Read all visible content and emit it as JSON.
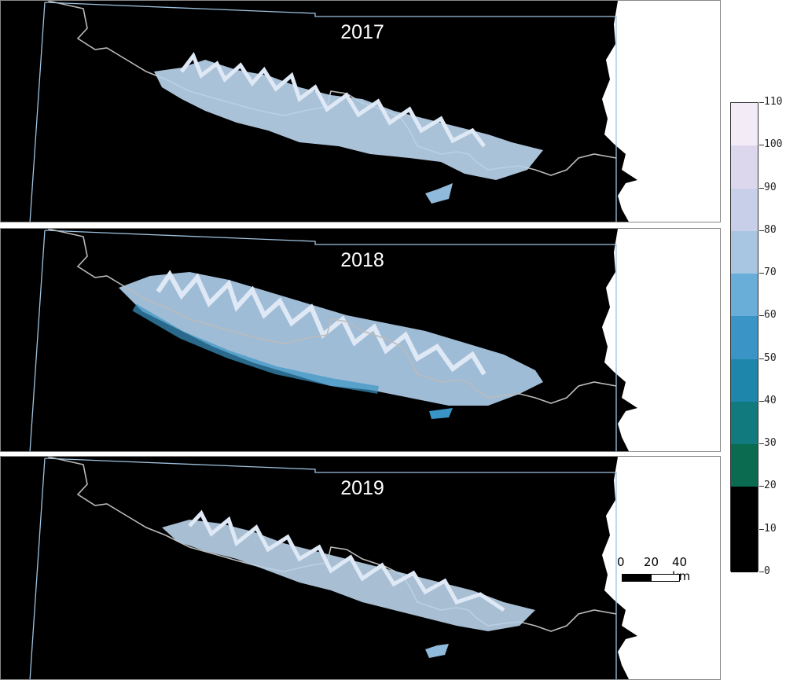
{
  "panels": [
    {
      "year": "2017"
    },
    {
      "year": "2018"
    },
    {
      "year": "2019"
    }
  ],
  "colorbar": {
    "ticks": [
      "110",
      "100",
      "90",
      "80",
      "70",
      "60",
      "50",
      "40",
      "30",
      "20",
      "10",
      "0"
    ],
    "min": 0,
    "max": 110,
    "colors": {
      "0-20": "#000000",
      "20-30": "#0b6b50",
      "30-40": "#117a7e",
      "40-50": "#1d86aa",
      "50-60": "#3a95c6",
      "60-70": "#69aed8",
      "70-80": "#a8c6e2",
      "80-90": "#c8cfe8",
      "90-100": "#dcd7ed",
      "100-110": "#f3ecf6"
    }
  },
  "scalebar": {
    "label_0": "0",
    "label_20": "20",
    "label_40": "40 km"
  },
  "colors": {
    "background": "#000000",
    "land_outside": "#ffffff",
    "snow": "#b9d3ea",
    "border_line": "#bbbbbb",
    "region_outline": "#9fc3e0"
  }
}
